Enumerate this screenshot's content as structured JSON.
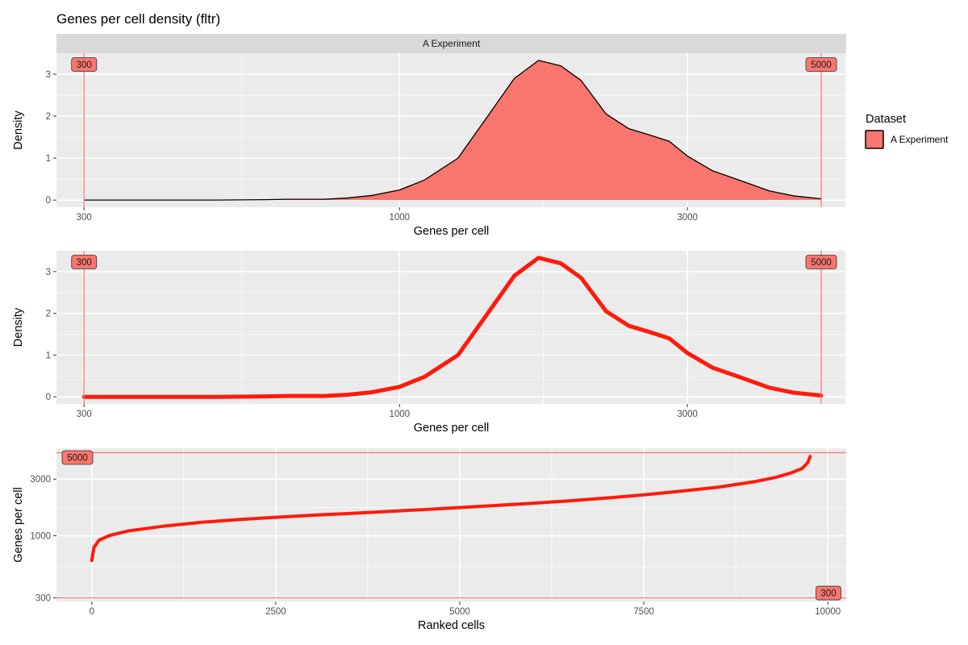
{
  "title": "Genes per cell density (fltr)",
  "colors": {
    "fill": "#F8766D",
    "line_red": "#F8766D",
    "curve_red": "#FF1A0A",
    "outline": "#000000"
  },
  "legend": {
    "title": "Dataset",
    "label": "A Experiment",
    "placement": "right"
  },
  "chart_data": [
    {
      "type": "area",
      "facet_label": "A Experiment",
      "xlabel": "Genes per cell",
      "ylabel": "Density",
      "x_scale": "log10",
      "xlim": [
        270,
        5500
      ],
      "ylim": [
        -0.17,
        3.5
      ],
      "x_ticks": [
        300,
        1000,
        3000
      ],
      "x_tick_labels": [
        "300",
        "1000",
        "3000"
      ],
      "y_ticks": [
        0,
        1,
        2,
        3
      ],
      "y_tick_labels": [
        "0",
        "1",
        "2",
        "3"
      ],
      "thresholds": [
        300,
        5000
      ],
      "threshold_labels": [
        "300",
        "5000"
      ],
      "series": [
        {
          "name": "A Experiment",
          "x": [
            300,
            400,
            500,
            600,
            650,
            750,
            820,
            900,
            1000,
            1100,
            1250,
            1400,
            1550,
            1700,
            1850,
            2000,
            2200,
            2400,
            2600,
            2800,
            3000,
            3300,
            3700,
            4100,
            4500,
            5000
          ],
          "y": [
            0,
            0,
            0,
            0.01,
            0.02,
            0.02,
            0.05,
            0.11,
            0.24,
            0.48,
            1.0,
            2.0,
            2.9,
            3.33,
            3.2,
            2.85,
            2.05,
            1.7,
            1.55,
            1.4,
            1.05,
            0.7,
            0.45,
            0.22,
            0.1,
            0.03
          ]
        }
      ]
    },
    {
      "type": "line",
      "xlabel": "Genes per cell",
      "ylabel": "Density",
      "x_scale": "log10",
      "xlim": [
        270,
        5500
      ],
      "ylim": [
        -0.17,
        3.5
      ],
      "x_ticks": [
        300,
        1000,
        3000
      ],
      "x_tick_labels": [
        "300",
        "1000",
        "3000"
      ],
      "y_ticks": [
        0,
        1,
        2,
        3
      ],
      "y_tick_labels": [
        "0",
        "1",
        "2",
        "3"
      ],
      "thresholds": [
        300,
        5000
      ],
      "threshold_labels": [
        "300",
        "5000"
      ],
      "series": [
        {
          "x": [
            300,
            400,
            500,
            600,
            650,
            750,
            820,
            900,
            1000,
            1100,
            1250,
            1400,
            1550,
            1700,
            1850,
            2000,
            2200,
            2400,
            2600,
            2800,
            3000,
            3300,
            3700,
            4100,
            4500,
            5000
          ],
          "y": [
            0,
            0,
            0,
            0.01,
            0.02,
            0.02,
            0.05,
            0.11,
            0.24,
            0.48,
            1.0,
            2.0,
            2.9,
            3.33,
            3.2,
            2.85,
            2.05,
            1.7,
            1.55,
            1.4,
            1.05,
            0.7,
            0.45,
            0.22,
            0.1,
            0.03
          ]
        }
      ]
    },
    {
      "type": "line",
      "xlabel": "Ranked cells",
      "ylabel": "Genes per cell",
      "y_scale": "log10",
      "xlim": [
        -480,
        10250
      ],
      "ylim": [
        280,
        5450
      ],
      "x_ticks": [
        0,
        2500,
        5000,
        7500,
        10000
      ],
      "x_tick_labels": [
        "0",
        "2500",
        "5000",
        "7500",
        "10000"
      ],
      "y_ticks": [
        300,
        1000,
        3000
      ],
      "y_tick_labels": [
        "300",
        "1000",
        "3000"
      ],
      "thresholds": [
        300,
        5000
      ],
      "threshold_labels": [
        "300",
        "5000"
      ],
      "series": [
        {
          "x": [
            0,
            30,
            100,
            250,
            500,
            1000,
            1500,
            2000,
            2500,
            3000,
            3500,
            4000,
            4500,
            5000,
            5500,
            6000,
            6500,
            7000,
            7500,
            8000,
            8500,
            9000,
            9300,
            9500,
            9650,
            9730,
            9760
          ],
          "y": [
            620,
            800,
            920,
            1010,
            1100,
            1210,
            1300,
            1370,
            1430,
            1490,
            1540,
            1600,
            1660,
            1730,
            1800,
            1880,
            1970,
            2080,
            2210,
            2370,
            2560,
            2850,
            3110,
            3380,
            3680,
            4150,
            4650
          ]
        }
      ]
    }
  ]
}
